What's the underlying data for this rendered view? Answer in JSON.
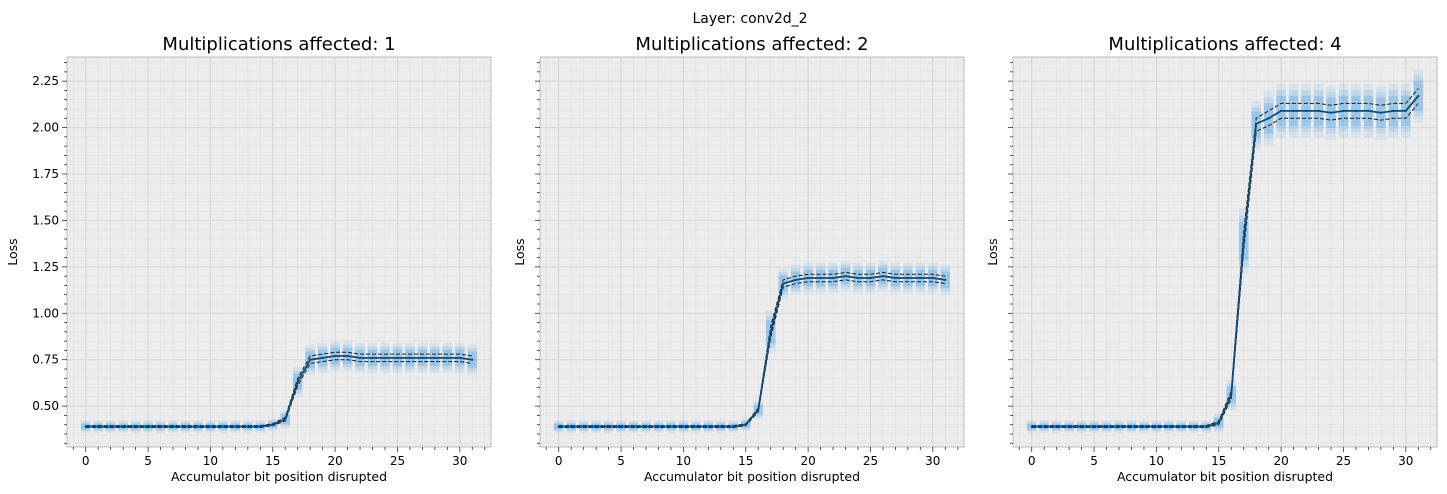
{
  "figure": {
    "suptitle": "Layer: conv2d_2"
  },
  "chart_data": [
    {
      "type": "line",
      "title": "Multiplications affected: 1",
      "xlabel": "Accumulator bit position disrupted",
      "ylabel": "Loss",
      "xlim": [
        -1.5,
        32.5
      ],
      "ylim": [
        0.28,
        2.38
      ],
      "xticks": [
        "0",
        "5",
        "10",
        "15",
        "20",
        "25",
        "30"
      ],
      "yticks": [
        "0.50",
        "0.75",
        "1.00",
        "1.25",
        "1.50",
        "1.75",
        "2.00",
        "2.25"
      ],
      "ytick_values": [
        0.5,
        0.75,
        1.0,
        1.25,
        1.5,
        1.75,
        2.0,
        2.25
      ],
      "show_ytick_labels": true,
      "grid": true,
      "x": [
        0,
        1,
        2,
        3,
        4,
        5,
        6,
        7,
        8,
        9,
        10,
        11,
        12,
        13,
        14,
        15,
        16,
        17,
        18,
        19,
        20,
        21,
        22,
        23,
        24,
        25,
        26,
        27,
        28,
        29,
        30,
        31
      ],
      "mean": [
        0.39,
        0.39,
        0.39,
        0.39,
        0.39,
        0.39,
        0.39,
        0.39,
        0.39,
        0.39,
        0.39,
        0.39,
        0.39,
        0.39,
        0.39,
        0.4,
        0.43,
        0.63,
        0.75,
        0.76,
        0.77,
        0.77,
        0.76,
        0.76,
        0.76,
        0.76,
        0.76,
        0.76,
        0.76,
        0.76,
        0.76,
        0.75
      ],
      "upper": [
        0.395,
        0.395,
        0.395,
        0.395,
        0.395,
        0.395,
        0.395,
        0.395,
        0.395,
        0.395,
        0.395,
        0.395,
        0.395,
        0.395,
        0.395,
        0.405,
        0.44,
        0.65,
        0.77,
        0.78,
        0.79,
        0.79,
        0.78,
        0.78,
        0.78,
        0.78,
        0.78,
        0.78,
        0.78,
        0.78,
        0.78,
        0.77
      ],
      "lower": [
        0.385,
        0.385,
        0.385,
        0.385,
        0.385,
        0.385,
        0.385,
        0.385,
        0.385,
        0.385,
        0.385,
        0.385,
        0.385,
        0.385,
        0.385,
        0.395,
        0.42,
        0.61,
        0.73,
        0.74,
        0.75,
        0.75,
        0.74,
        0.74,
        0.74,
        0.74,
        0.74,
        0.74,
        0.74,
        0.74,
        0.74,
        0.73
      ]
    },
    {
      "type": "line",
      "title": "Multiplications affected: 2",
      "xlabel": "Accumulator bit position disrupted",
      "ylabel": "Loss",
      "xlim": [
        -1.5,
        32.5
      ],
      "ylim": [
        0.28,
        2.38
      ],
      "xticks": [
        "0",
        "5",
        "10",
        "15",
        "20",
        "25",
        "30"
      ],
      "yticks": [],
      "ytick_values": [
        0.5,
        0.75,
        1.0,
        1.25,
        1.5,
        1.75,
        2.0,
        2.25
      ],
      "show_ytick_labels": false,
      "grid": true,
      "x": [
        0,
        1,
        2,
        3,
        4,
        5,
        6,
        7,
        8,
        9,
        10,
        11,
        12,
        13,
        14,
        15,
        16,
        17,
        18,
        19,
        20,
        21,
        22,
        23,
        24,
        25,
        26,
        27,
        28,
        29,
        30,
        31
      ],
      "mean": [
        0.39,
        0.39,
        0.39,
        0.39,
        0.39,
        0.39,
        0.39,
        0.39,
        0.39,
        0.39,
        0.39,
        0.39,
        0.39,
        0.39,
        0.39,
        0.4,
        0.48,
        0.9,
        1.16,
        1.18,
        1.19,
        1.19,
        1.19,
        1.2,
        1.19,
        1.19,
        1.2,
        1.19,
        1.19,
        1.19,
        1.19,
        1.18
      ],
      "upper": [
        0.395,
        0.395,
        0.395,
        0.395,
        0.395,
        0.395,
        0.395,
        0.395,
        0.395,
        0.395,
        0.395,
        0.395,
        0.395,
        0.395,
        0.395,
        0.405,
        0.49,
        0.93,
        1.18,
        1.2,
        1.21,
        1.21,
        1.21,
        1.22,
        1.21,
        1.21,
        1.22,
        1.21,
        1.21,
        1.21,
        1.21,
        1.2
      ],
      "lower": [
        0.385,
        0.385,
        0.385,
        0.385,
        0.385,
        0.385,
        0.385,
        0.385,
        0.385,
        0.385,
        0.385,
        0.385,
        0.385,
        0.385,
        0.385,
        0.395,
        0.47,
        0.87,
        1.14,
        1.16,
        1.17,
        1.17,
        1.17,
        1.18,
        1.17,
        1.17,
        1.18,
        1.17,
        1.17,
        1.17,
        1.17,
        1.16
      ]
    },
    {
      "type": "line",
      "title": "Multiplications affected: 4",
      "xlabel": "Accumulator bit position disrupted",
      "ylabel": "Loss",
      "xlim": [
        -1.5,
        32.5
      ],
      "ylim": [
        0.28,
        2.38
      ],
      "xticks": [
        "0",
        "5",
        "10",
        "15",
        "20",
        "25",
        "30"
      ],
      "yticks": [],
      "ytick_values": [
        0.5,
        0.75,
        1.0,
        1.25,
        1.5,
        1.75,
        2.0,
        2.25
      ],
      "show_ytick_labels": false,
      "grid": true,
      "x": [
        0,
        1,
        2,
        3,
        4,
        5,
        6,
        7,
        8,
        9,
        10,
        11,
        12,
        13,
        14,
        15,
        16,
        17,
        18,
        19,
        20,
        21,
        22,
        23,
        24,
        25,
        26,
        27,
        28,
        29,
        30,
        31
      ],
      "mean": [
        0.39,
        0.39,
        0.39,
        0.39,
        0.39,
        0.39,
        0.39,
        0.39,
        0.39,
        0.39,
        0.39,
        0.39,
        0.39,
        0.39,
        0.39,
        0.41,
        0.56,
        1.39,
        2.02,
        2.05,
        2.09,
        2.09,
        2.09,
        2.09,
        2.08,
        2.09,
        2.09,
        2.09,
        2.08,
        2.09,
        2.09,
        2.17
      ],
      "upper": [
        0.395,
        0.395,
        0.395,
        0.395,
        0.395,
        0.395,
        0.395,
        0.395,
        0.395,
        0.395,
        0.395,
        0.395,
        0.395,
        0.395,
        0.395,
        0.42,
        0.58,
        1.44,
        2.05,
        2.09,
        2.13,
        2.13,
        2.13,
        2.13,
        2.12,
        2.13,
        2.13,
        2.13,
        2.12,
        2.13,
        2.13,
        2.21
      ],
      "lower": [
        0.385,
        0.385,
        0.385,
        0.385,
        0.385,
        0.385,
        0.385,
        0.385,
        0.385,
        0.385,
        0.385,
        0.385,
        0.385,
        0.385,
        0.385,
        0.4,
        0.54,
        1.34,
        1.98,
        2.01,
        2.05,
        2.05,
        2.05,
        2.05,
        2.04,
        2.05,
        2.05,
        2.05,
        2.04,
        2.05,
        2.05,
        2.13
      ]
    }
  ],
  "colors": {
    "plot_bg": "#ececec",
    "grid": "#d7d7d7",
    "minor_grid": "#e3e3e3",
    "frame": "#bcbcbc",
    "mean_line": "#0c4a78",
    "bound_line": "#1a1a1a",
    "band": "#4da3e8"
  }
}
